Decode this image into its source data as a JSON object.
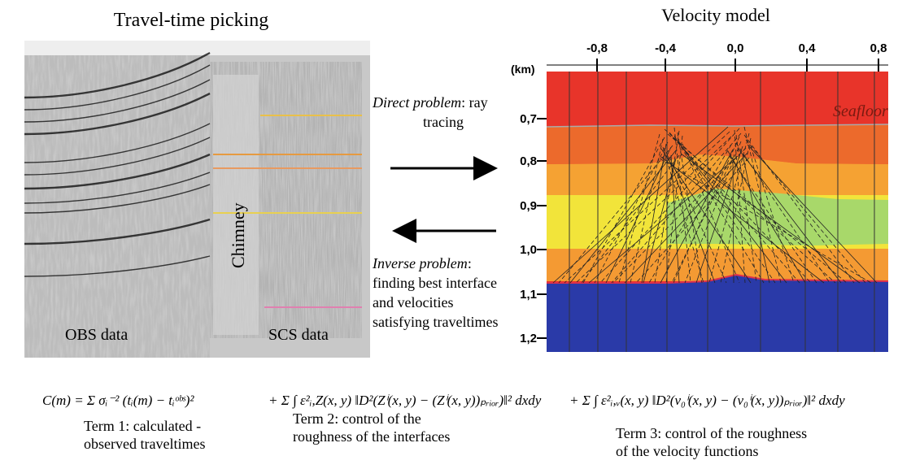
{
  "left": {
    "title": "Travel-time picking",
    "obs_label": "OBS data",
    "chimney_label": "Chimney",
    "scs_label": "SCS data"
  },
  "right": {
    "title": "Velocity model",
    "x_ticks": [
      "-0,8",
      "-0,4",
      "0,0",
      "0,4",
      "0,8"
    ],
    "y_unit": "(km)",
    "y_ticks": [
      "0,7",
      "0,8",
      "0,9",
      "1,0",
      "1,1",
      "1,2"
    ],
    "seafloor": "Seafloor"
  },
  "direct": {
    "name": "Direct problem",
    "rest": [
      ": ray",
      "tracing"
    ]
  },
  "inverse": {
    "name": "Inverse problem",
    "rest": [
      ":",
      "finding best interface",
      "and velocities",
      "satisfying traveltimes"
    ]
  },
  "formula": [
    "C(m) = Σ σᵢ⁻² (tᵢ(m) − tᵢᵒᵇˢ)²",
    "+ Σ ∫ ε²ᵢ,Z(x, y) ‖D²(Zⁱ(x, y) − (Zⁱ(x, y))ₚᵣᵢₒᵣ)‖² dxdy",
    "+ Σ ∫ ε²ᵢ,ᵥ(x, y) ‖D²(v₀ⁱ(x, y) − (v₀ⁱ(x, y))ₚᵣᵢₒᵣ)‖² dxdy"
  ],
  "terms": [
    [
      "Term 1: calculated -",
      "observed traveltimes"
    ],
    [
      "Term 2: control of the",
      "roughness of the interfaces"
    ],
    [
      "Term 3: control of the roughness",
      "of the velocity functions"
    ]
  ]
}
